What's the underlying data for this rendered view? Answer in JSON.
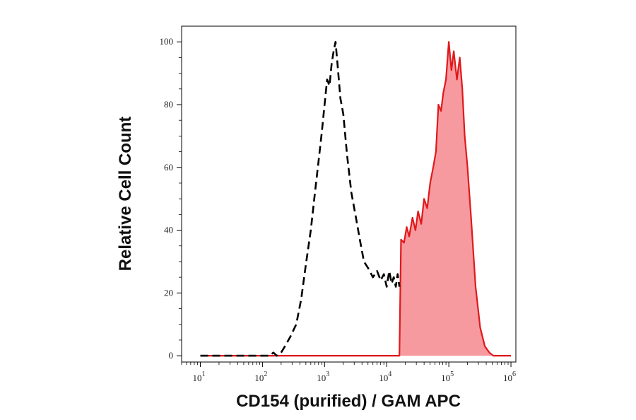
{
  "chart_data": {
    "type": "area",
    "xlabel": "CD154 (purified) / GAM APC",
    "ylabel": "Relative Cell Count",
    "x_scale": "log",
    "xlim": [
      5,
      1200000
    ],
    "ylim": [
      -2,
      105
    ],
    "x_ticks": [
      {
        "value": 10,
        "base": "10",
        "exp": "1"
      },
      {
        "value": 100,
        "base": "10",
        "exp": "2"
      },
      {
        "value": 1000,
        "base": "10",
        "exp": "3"
      },
      {
        "value": 10000,
        "base": "10",
        "exp": "4"
      },
      {
        "value": 100000,
        "base": "10",
        "exp": "5"
      },
      {
        "value": 1000000,
        "base": "10",
        "exp": "6"
      }
    ],
    "y_ticks": [
      0,
      20,
      40,
      60,
      80,
      100
    ],
    "series": [
      {
        "style": "dashed",
        "color": "#000000",
        "points": [
          [
            10,
            0
          ],
          [
            100,
            0
          ],
          [
            130,
            0
          ],
          [
            150,
            1
          ],
          [
            170,
            0
          ],
          [
            200,
            1
          ],
          [
            230,
            3
          ],
          [
            280,
            6
          ],
          [
            350,
            10
          ],
          [
            420,
            18
          ],
          [
            500,
            29
          ],
          [
            600,
            40
          ],
          [
            700,
            52
          ],
          [
            800,
            62
          ],
          [
            900,
            71
          ],
          [
            1000,
            80
          ],
          [
            1100,
            88
          ],
          [
            1200,
            86
          ],
          [
            1300,
            93
          ],
          [
            1400,
            97
          ],
          [
            1500,
            100
          ],
          [
            1600,
            94
          ],
          [
            1800,
            82
          ],
          [
            2000,
            77
          ],
          [
            2300,
            64
          ],
          [
            2700,
            52
          ],
          [
            3200,
            44
          ],
          [
            3700,
            37
          ],
          [
            4300,
            30
          ],
          [
            5000,
            28
          ],
          [
            6000,
            25
          ],
          [
            7000,
            27
          ],
          [
            8000,
            24
          ],
          [
            9000,
            26
          ],
          [
            10000,
            22
          ],
          [
            11000,
            27
          ],
          [
            12000,
            23
          ],
          [
            13000,
            25
          ],
          [
            14000,
            22
          ],
          [
            15000,
            26
          ],
          [
            16000,
            22
          ]
        ]
      },
      {
        "style": "filled",
        "color": "#e0191b",
        "fill": "#f79aa0",
        "points": [
          [
            10,
            0
          ],
          [
            16000,
            0
          ],
          [
            17000,
            37
          ],
          [
            19000,
            36
          ],
          [
            21000,
            41
          ],
          [
            23000,
            38
          ],
          [
            26000,
            44
          ],
          [
            29000,
            40
          ],
          [
            32000,
            46
          ],
          [
            36000,
            42
          ],
          [
            40000,
            50
          ],
          [
            45000,
            47
          ],
          [
            50000,
            55
          ],
          [
            56000,
            60
          ],
          [
            62000,
            65
          ],
          [
            68000,
            80
          ],
          [
            75000,
            78
          ],
          [
            82000,
            84
          ],
          [
            90000,
            88
          ],
          [
            100000,
            100
          ],
          [
            110000,
            91
          ],
          [
            120000,
            97
          ],
          [
            135000,
            88
          ],
          [
            150000,
            95
          ],
          [
            165000,
            85
          ],
          [
            180000,
            70
          ],
          [
            200000,
            60
          ],
          [
            230000,
            43
          ],
          [
            270000,
            22
          ],
          [
            320000,
            9
          ],
          [
            380000,
            3
          ],
          [
            450000,
            1
          ],
          [
            520000,
            0
          ],
          [
            1000000,
            0
          ]
        ]
      }
    ]
  }
}
